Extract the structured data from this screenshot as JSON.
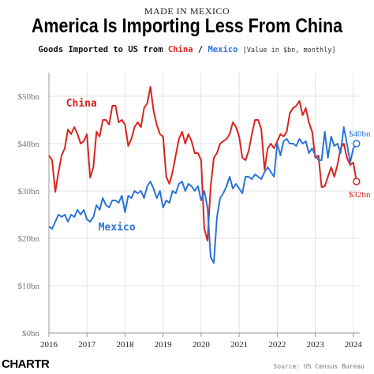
{
  "header": {
    "kicker": "MADE IN MEXICO",
    "title": "America Is Importing Less From China",
    "subtitle_prefix": "Goods Imported to US from",
    "subtitle_china": "China",
    "subtitle_sep": " / ",
    "subtitle_mexico": "Mexico",
    "subtitle_note": "[Value in $bn, monthly]"
  },
  "footer": {
    "logo": "CHARTR",
    "source": "Source: US Census Bureau"
  },
  "colors": {
    "china": "#d9231e",
    "mexico": "#2a73d6",
    "grid": "#e3e3e3",
    "axis": "#999999",
    "tick_text": "#777777"
  },
  "chart_data": {
    "type": "line",
    "title": "America Is Importing Less From China",
    "subtitle": "Goods Imported to US from China / Mexico [Value in $bn, monthly]",
    "xlabel": "",
    "ylabel": "",
    "xlim": [
      2016.0,
      2024.17
    ],
    "ylim": [
      0,
      55
    ],
    "x_ticks": [
      2016,
      2017,
      2018,
      2019,
      2020,
      2021,
      2022,
      2023,
      2024
    ],
    "x_tick_labels": [
      "2016",
      "2017",
      "2018",
      "2019",
      "2020",
      "2021",
      "2022",
      "2023",
      "2024"
    ],
    "y_ticks": [
      0,
      10,
      20,
      30,
      40,
      50
    ],
    "y_tick_labels": [
      "$0bn",
      "$10bn",
      "$20bn",
      "$30bn",
      "$40bn",
      "$50bn"
    ],
    "grid": true,
    "series": [
      {
        "name": "China",
        "color": "#d9231e",
        "end_label": "$32bn",
        "x": [
          2016.0,
          2016.083,
          2016.167,
          2016.25,
          2016.333,
          2016.417,
          2016.5,
          2016.583,
          2016.667,
          2016.75,
          2016.833,
          2016.917,
          2017.0,
          2017.083,
          2017.167,
          2017.25,
          2017.333,
          2017.417,
          2017.5,
          2017.583,
          2017.667,
          2017.75,
          2017.833,
          2017.917,
          2018.0,
          2018.083,
          2018.167,
          2018.25,
          2018.333,
          2018.417,
          2018.5,
          2018.583,
          2018.667,
          2018.75,
          2018.833,
          2018.917,
          2019.0,
          2019.083,
          2019.167,
          2019.25,
          2019.333,
          2019.417,
          2019.5,
          2019.583,
          2019.667,
          2019.75,
          2019.833,
          2019.917,
          2020.0,
          2020.083,
          2020.167,
          2020.25,
          2020.333,
          2020.417,
          2020.5,
          2020.583,
          2020.667,
          2020.75,
          2020.833,
          2020.917,
          2021.0,
          2021.083,
          2021.167,
          2021.25,
          2021.333,
          2021.417,
          2021.5,
          2021.583,
          2021.667,
          2021.75,
          2021.833,
          2021.917,
          2022.0,
          2022.083,
          2022.167,
          2022.25,
          2022.333,
          2022.417,
          2022.5,
          2022.583,
          2022.667,
          2022.75,
          2022.833,
          2022.917,
          2023.0,
          2023.083,
          2023.167,
          2023.25,
          2023.333,
          2023.417,
          2023.5,
          2023.583,
          2023.667,
          2023.75,
          2023.833,
          2023.917,
          2024.0,
          2024.083
        ],
        "values": [
          37.5,
          36.5,
          29.8,
          34.0,
          37.5,
          39.0,
          43.0,
          42.0,
          43.5,
          42.0,
          40.0,
          40.5,
          42.0,
          32.8,
          35.0,
          42.5,
          41.5,
          45.0,
          45.0,
          44.0,
          48.0,
          48.0,
          44.5,
          45.0,
          44.0,
          39.5,
          41.0,
          43.5,
          44.5,
          43.5,
          47.5,
          48.5,
          52.0,
          47.0,
          44.0,
          42.0,
          41.5,
          33.0,
          31.5,
          34.0,
          37.5,
          41.0,
          42.5,
          40.0,
          42.0,
          40.5,
          38.0,
          38.0,
          36.5,
          22.0,
          19.5,
          31.0,
          37.0,
          38.0,
          40.0,
          40.5,
          41.0,
          42.0,
          44.5,
          43.5,
          41.5,
          37.0,
          36.5,
          38.5,
          42.0,
          45.0,
          45.0,
          43.0,
          34.5,
          39.0,
          40.0,
          39.0,
          40.5,
          42.0,
          41.5,
          42.5,
          46.5,
          47.5,
          48.0,
          49.0,
          46.0,
          47.5,
          44.5,
          42.5,
          37.0,
          37.5,
          30.8,
          31.0,
          33.0,
          35.0,
          33.0,
          35.5,
          39.0,
          40.0,
          37.0,
          35.5,
          36.0,
          32.0
        ]
      },
      {
        "name": "Mexico",
        "color": "#2a73d6",
        "end_label": "$40bn",
        "x": [
          2016.0,
          2016.083,
          2016.167,
          2016.25,
          2016.333,
          2016.417,
          2016.5,
          2016.583,
          2016.667,
          2016.75,
          2016.833,
          2016.917,
          2017.0,
          2017.083,
          2017.167,
          2017.25,
          2017.333,
          2017.417,
          2017.5,
          2017.583,
          2017.667,
          2017.75,
          2017.833,
          2017.917,
          2018.0,
          2018.083,
          2018.167,
          2018.25,
          2018.333,
          2018.417,
          2018.5,
          2018.583,
          2018.667,
          2018.75,
          2018.833,
          2018.917,
          2019.0,
          2019.083,
          2019.167,
          2019.25,
          2019.333,
          2019.417,
          2019.5,
          2019.583,
          2019.667,
          2019.75,
          2019.833,
          2019.917,
          2020.0,
          2020.083,
          2020.167,
          2020.25,
          2020.333,
          2020.417,
          2020.5,
          2020.583,
          2020.667,
          2020.75,
          2020.833,
          2020.917,
          2021.0,
          2021.083,
          2021.167,
          2021.25,
          2021.333,
          2021.417,
          2021.5,
          2021.583,
          2021.667,
          2021.75,
          2021.833,
          2021.917,
          2022.0,
          2022.083,
          2022.167,
          2022.25,
          2022.333,
          2022.417,
          2022.5,
          2022.583,
          2022.667,
          2022.75,
          2022.833,
          2022.917,
          2023.0,
          2023.083,
          2023.167,
          2023.25,
          2023.333,
          2023.417,
          2023.5,
          2023.583,
          2023.667,
          2023.75,
          2023.833,
          2023.917,
          2024.0,
          2024.083
        ],
        "values": [
          22.5,
          22.0,
          23.5,
          25.0,
          24.5,
          25.0,
          23.5,
          25.0,
          24.5,
          26.0,
          25.0,
          26.0,
          24.0,
          23.5,
          24.5,
          27.0,
          26.0,
          28.5,
          27.0,
          26.5,
          28.0,
          28.0,
          27.5,
          29.0,
          25.5,
          29.0,
          28.5,
          30.0,
          29.5,
          30.0,
          28.5,
          31.0,
          32.0,
          30.5,
          28.5,
          30.0,
          26.5,
          28.0,
          27.5,
          30.0,
          29.5,
          31.5,
          32.0,
          30.0,
          31.5,
          31.0,
          30.0,
          31.0,
          28.0,
          30.0,
          26.5,
          16.0,
          14.8,
          24.5,
          28.5,
          29.5,
          31.0,
          33.0,
          30.5,
          31.5,
          30.5,
          29.5,
          33.0,
          33.0,
          32.5,
          33.5,
          33.0,
          32.5,
          34.0,
          35.0,
          34.0,
          33.0,
          40.0,
          37.5,
          40.5,
          41.0,
          40.0,
          40.0,
          39.5,
          41.0,
          40.0,
          40.5,
          38.0,
          39.0,
          37.5,
          36.5,
          36.5,
          42.5,
          37.0,
          41.5,
          39.5,
          40.0,
          38.0,
          43.5,
          40.0,
          36.0,
          39.0,
          40.0
        ]
      }
    ],
    "series_labels": [
      "China",
      "Mexico"
    ]
  }
}
